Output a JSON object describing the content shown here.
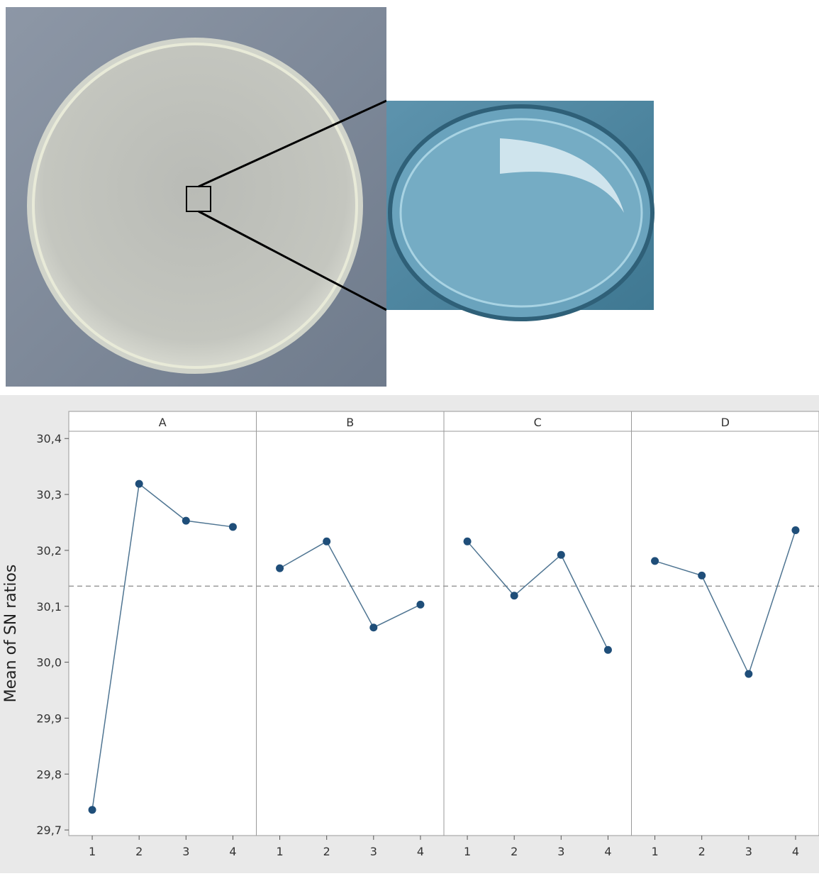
{
  "chart_data": {
    "type": "line",
    "ylabel": "Mean of SN ratios",
    "categories": [
      "1",
      "2",
      "3",
      "4"
    ],
    "panels": [
      {
        "title": "A",
        "values": [
          29.736,
          30.319,
          30.253,
          30.242
        ]
      },
      {
        "title": "B",
        "values": [
          30.168,
          30.216,
          30.062,
          30.103
        ]
      },
      {
        "title": "C",
        "values": [
          30.216,
          30.119,
          30.192,
          30.022
        ]
      },
      {
        "title": "D",
        "values": [
          30.181,
          30.155,
          29.979,
          30.236
        ]
      }
    ],
    "mean_line": 30.136,
    "color": "#1f4e79",
    "ylim": [
      29.69,
      30.413
    ],
    "yticks": [
      {
        "value": 29.7,
        "label": "29,7"
      },
      {
        "value": 29.8,
        "label": "29,8"
      },
      {
        "value": 29.9,
        "label": "29,9"
      },
      {
        "value": 30.0,
        "label": "30,0"
      },
      {
        "value": 30.1,
        "label": "30,1"
      },
      {
        "value": 30.2,
        "label": "30,2"
      },
      {
        "value": 30.3,
        "label": "30,3"
      },
      {
        "value": 30.4,
        "label": "30,4"
      }
    ]
  }
}
